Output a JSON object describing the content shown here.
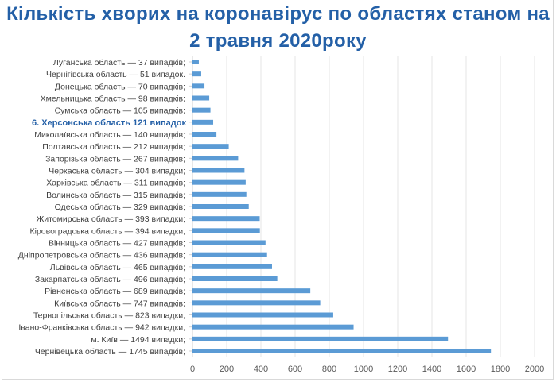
{
  "chart_data": {
    "type": "bar",
    "orientation": "horizontal",
    "title": "Кількість хворих на коронавірус по областях станом на 2 травня 2020року",
    "title_lines": [
      "Кількість хворих на коронавірус по областях станом на",
      "2 травня 2020року"
    ],
    "categories": [
      "Луганська область — 37 випадків;",
      "Чернігівська область — 51 випадок.",
      "Донецька область — 70 випадків;",
      "Хмельницька область — 98 випадків;",
      "Сумська область — 105 випадків;",
      "6. Херсонська область 121 випадок",
      "Миколаївська область — 140 випадків;",
      "Полтавська область — 212 випадків;",
      "Запорізька область — 267 випадків;",
      "Черкаська область — 304 випадки;",
      "Харківська область — 311 випадків;",
      "Волинська область — 315 випадків;",
      "Одеська область — 329 випадків;",
      "Житомирська область — 393 випадки;",
      "Кіровоградська область — 394 випадки;",
      "Вінницька область — 427 випадків;",
      "Дніпропетровська область — 436 випадків;",
      "Львівська область — 465 випадків;",
      "Закарпатська область — 496 випадків;",
      "Рівненська область — 689 випадків;",
      "Київська область — 747 випадків;",
      "Тернопільська область — 823 випадки;",
      "Івано-Франківська область — 942 випадки;",
      "м. Київ — 1494 випадки;",
      "Чернівецька область — 1745 випадків;"
    ],
    "values": [
      37,
      51,
      70,
      98,
      105,
      121,
      140,
      212,
      267,
      304,
      311,
      315,
      329,
      393,
      394,
      427,
      436,
      465,
      496,
      689,
      747,
      823,
      942,
      1494,
      1745
    ],
    "highlighted_category": "6. Херсонська область 121 випадок",
    "xlim": [
      0,
      2000
    ],
    "xticks": [
      "0",
      "200",
      "400",
      "600",
      "800",
      "1000",
      "1200",
      "1400",
      "1600",
      "1800",
      "2000"
    ],
    "xlabel": "",
    "ylabel": "",
    "grid": true,
    "legend": "none",
    "colors": {
      "bar": "#5b9bd5",
      "title": "#2460a7",
      "highlight_label": "#2460a7",
      "grid": "#e6e6e6"
    }
  }
}
